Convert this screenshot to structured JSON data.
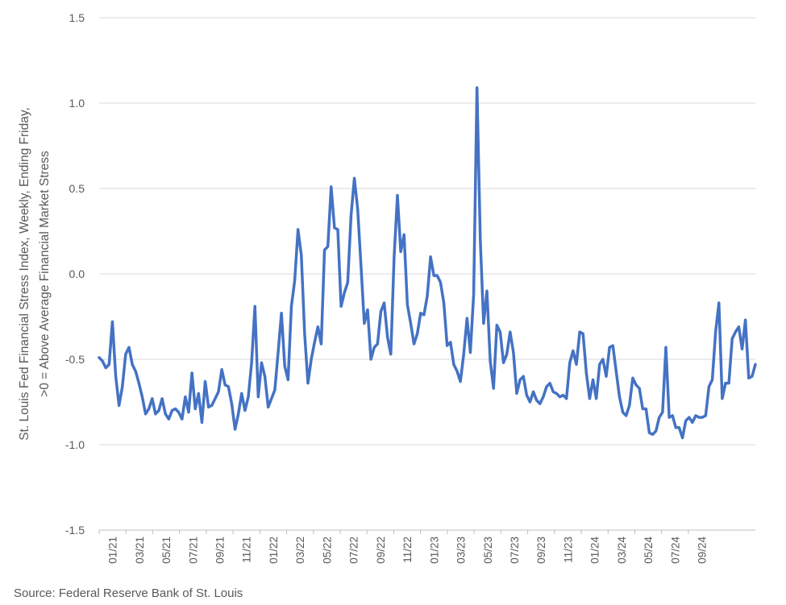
{
  "source": "Source: Federal Reserve Bank of St. Louis",
  "chart_data": {
    "type": "line",
    "title": "",
    "xlabel": "",
    "ylabel": "St. Louis Fed Financial Stress Index, Weekly, Ending Friday, >0 = Above Average Financial Market Stress",
    "ylabel_lines": [
      "St. Louis Fed Financial Stress Index, Weekly, Ending Friday,",
      ">0 = Above Average Financial Market Stress"
    ],
    "ylim": [
      -1.5,
      1.5
    ],
    "yticks": [
      1.5,
      1.0,
      0.5,
      0.0,
      -0.5,
      -1.0,
      -1.5
    ],
    "ytick_labels": [
      "1.5",
      "1.0",
      "0.5",
      "0.0",
      "-0.5",
      "-1.0",
      "-1.5"
    ],
    "xtick_labels": [
      "01/21",
      "03/21",
      "05/21",
      "07/21",
      "09/21",
      "11/21",
      "01/22",
      "03/22",
      "05/22",
      "07/22",
      "09/22",
      "11/22",
      "01/23",
      "03/23",
      "05/23",
      "07/23",
      "09/23",
      "11/23",
      "01/24",
      "03/24",
      "05/24",
      "07/24",
      "09/24"
    ],
    "grid": true,
    "legend": "none",
    "color": "#4472C4",
    "series": [
      {
        "values": [
          -0.49,
          -0.51,
          -0.55,
          -0.53,
          -0.28,
          -0.6,
          -0.77,
          -0.66,
          -0.47,
          -0.43,
          -0.53,
          -0.57,
          -0.64,
          -0.72,
          -0.82,
          -0.79,
          -0.73,
          -0.82,
          -0.8,
          -0.73,
          -0.82,
          -0.85,
          -0.8,
          -0.79,
          -0.81,
          -0.85,
          -0.72,
          -0.81,
          -0.58,
          -0.79,
          -0.7,
          -0.87,
          -0.63,
          -0.78,
          -0.77,
          -0.73,
          -0.69,
          -0.56,
          -0.65,
          -0.66,
          -0.76,
          -0.91,
          -0.82,
          -0.7,
          -0.8,
          -0.72,
          -0.52,
          -0.19,
          -0.72,
          -0.52,
          -0.6,
          -0.78,
          -0.73,
          -0.68,
          -0.46,
          -0.23,
          -0.54,
          -0.62,
          -0.19,
          -0.04,
          0.26,
          0.11,
          -0.35,
          -0.64,
          -0.5,
          -0.4,
          -0.31,
          -0.41,
          0.14,
          0.16,
          0.51,
          0.27,
          0.26,
          -0.19,
          -0.11,
          -0.05,
          0.34,
          0.56,
          0.38,
          0.05,
          -0.29,
          -0.21,
          -0.5,
          -0.43,
          -0.41,
          -0.22,
          -0.17,
          -0.37,
          -0.47,
          0.1,
          0.46,
          0.13,
          0.23,
          -0.18,
          -0.29,
          -0.41,
          -0.35,
          -0.23,
          -0.24,
          -0.13,
          0.1,
          -0.01,
          -0.01,
          -0.05,
          -0.17,
          -0.42,
          -0.4,
          -0.53,
          -0.57,
          -0.63,
          -0.47,
          -0.26,
          -0.46,
          -0.12,
          1.09,
          0.2,
          -0.29,
          -0.1,
          -0.51,
          -0.67,
          -0.3,
          -0.34,
          -0.52,
          -0.47,
          -0.34,
          -0.46,
          -0.7,
          -0.62,
          -0.6,
          -0.71,
          -0.75,
          -0.69,
          -0.74,
          -0.76,
          -0.72,
          -0.66,
          -0.64,
          -0.69,
          -0.7,
          -0.72,
          -0.71,
          -0.73,
          -0.52,
          -0.45,
          -0.53,
          -0.34,
          -0.35,
          -0.58,
          -0.73,
          -0.62,
          -0.73,
          -0.53,
          -0.5,
          -0.6,
          -0.43,
          -0.42,
          -0.57,
          -0.72,
          -0.81,
          -0.83,
          -0.77,
          -0.61,
          -0.65,
          -0.67,
          -0.79,
          -0.79,
          -0.93,
          -0.94,
          -0.92,
          -0.84,
          -0.81,
          -0.43,
          -0.84,
          -0.83,
          -0.9,
          -0.9,
          -0.96,
          -0.86,
          -0.84,
          -0.87,
          -0.83,
          -0.84,
          -0.84,
          -0.83,
          -0.66,
          -0.62,
          -0.34,
          -0.17,
          -0.73,
          -0.64,
          -0.64,
          -0.38,
          -0.34,
          -0.31,
          -0.44,
          -0.27,
          -0.61,
          -0.6,
          -0.53
        ]
      }
    ]
  }
}
